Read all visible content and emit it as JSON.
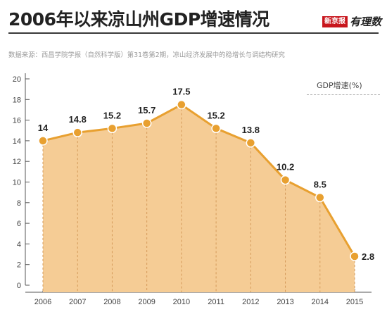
{
  "header": {
    "title": "2006年以来凉山州GDP增速情况",
    "brand_badge": "新京报",
    "brand_script": "有理数"
  },
  "source": "数据来源：西昌学院学报（自然科学版）第31卷第2期，凉山经济发展中的稳增长与调结构研究",
  "colors": {
    "line": "#e8a030",
    "fill": "#f5cc95",
    "marker": "#e8a030",
    "dashed_guides": "#d49a5a"
  },
  "chart_data": {
    "type": "area",
    "categories": [
      "2006",
      "2007",
      "2008",
      "2009",
      "2010",
      "2011",
      "2012",
      "2013",
      "2014",
      "2015"
    ],
    "series": [
      {
        "name": "GDP增速(%)",
        "values": [
          14,
          14.8,
          15.2,
          15.7,
          17.5,
          15.2,
          13.8,
          10.2,
          8.5,
          2.8
        ],
        "labels": [
          "14",
          "14.8",
          "15.2",
          "15.7",
          "17.5",
          "15.2",
          "13.8",
          "10.2",
          "8.5",
          "2.8"
        ]
      }
    ],
    "ylim": [
      0,
      20
    ],
    "yticks": [
      "0",
      "2",
      "4",
      "6",
      "8",
      "10",
      "12",
      "14",
      "16",
      "18",
      "20"
    ],
    "grid": false,
    "legend_position": "top-right",
    "legend_label": "GDP增速(%)"
  }
}
